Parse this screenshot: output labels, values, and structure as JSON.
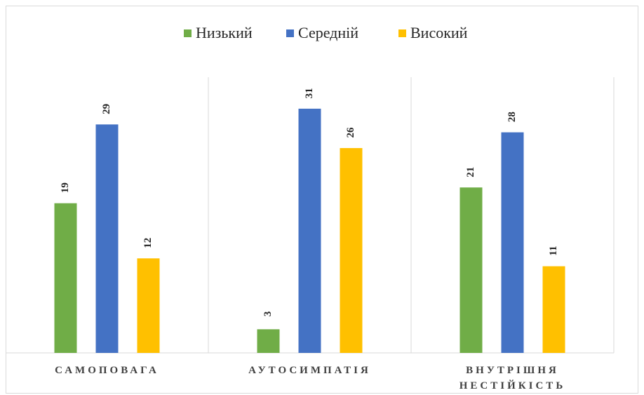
{
  "chart_data": {
    "type": "bar",
    "categories": [
      "САМОПОВАГА",
      "АУТОСИМПАТІЯ",
      "ВНУТРІШНЯ НЕСТІЙКІСТЬ"
    ],
    "series": [
      {
        "name": "Низький",
        "color": "#70ad47",
        "values": [
          19,
          3,
          21
        ]
      },
      {
        "name": "Середній",
        "color": "#4472c4",
        "values": [
          29,
          31,
          28
        ]
      },
      {
        "name": "Високий",
        "color": "#ffc000",
        "values": [
          12,
          26,
          11
        ]
      }
    ],
    "ylim": [
      0,
      35
    ],
    "legend": "top"
  }
}
